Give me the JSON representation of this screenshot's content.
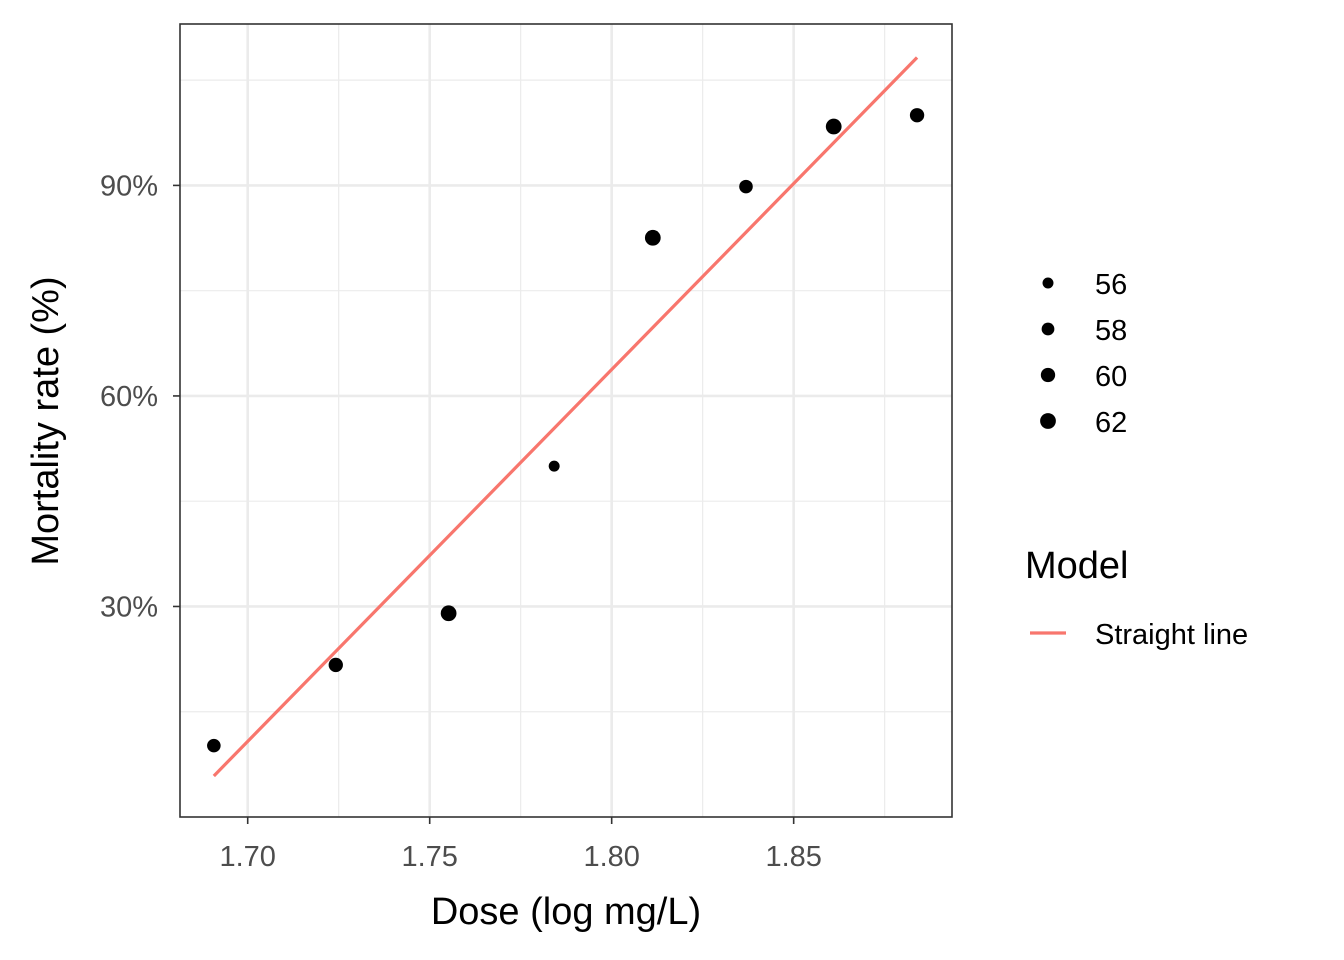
{
  "chart_data": {
    "type": "scatter",
    "xlabel": "Dose (log mg/L)",
    "ylabel": "Mortality rate (%)",
    "xlim": [
      1.6814,
      1.8935
    ],
    "ylim": [
      0.0,
      1.13
    ],
    "x_ticks": [
      1.7,
      1.75,
      1.8,
      1.85
    ],
    "x_tick_labels": [
      "1.70",
      "1.75",
      "1.80",
      "1.85"
    ],
    "y_ticks": [
      0.3,
      0.6,
      0.9
    ],
    "y_tick_labels": [
      "30%",
      "60%",
      "90%"
    ],
    "y_minor_ticks": [
      0.15,
      0.45,
      0.75,
      1.05
    ],
    "grid": true,
    "points": [
      {
        "x": 1.6907,
        "y": 0.1017,
        "n": 59
      },
      {
        "x": 1.7242,
        "y": 0.2167,
        "n": 60
      },
      {
        "x": 1.7552,
        "y": 0.2903,
        "n": 62
      },
      {
        "x": 1.7842,
        "y": 0.5,
        "n": 56
      },
      {
        "x": 1.8113,
        "y": 0.8254,
        "n": 63
      },
      {
        "x": 1.8369,
        "y": 0.8983,
        "n": 59
      },
      {
        "x": 1.861,
        "y": 0.9839,
        "n": 62
      },
      {
        "x": 1.8839,
        "y": 1.0,
        "n": 60
      }
    ],
    "fit_line": {
      "name": "Straight line",
      "color": "#f8766d",
      "x": [
        1.6907,
        1.8839
      ],
      "y": [
        0.0585,
        1.0822
      ]
    },
    "size_legend": {
      "title": "",
      "breaks": [
        56,
        58,
        60,
        62
      ],
      "labels": [
        "56",
        "58",
        "60",
        "62"
      ]
    },
    "color_legend": {
      "title": "Model",
      "labels": [
        "Straight line"
      ]
    },
    "legend_position": "right"
  }
}
